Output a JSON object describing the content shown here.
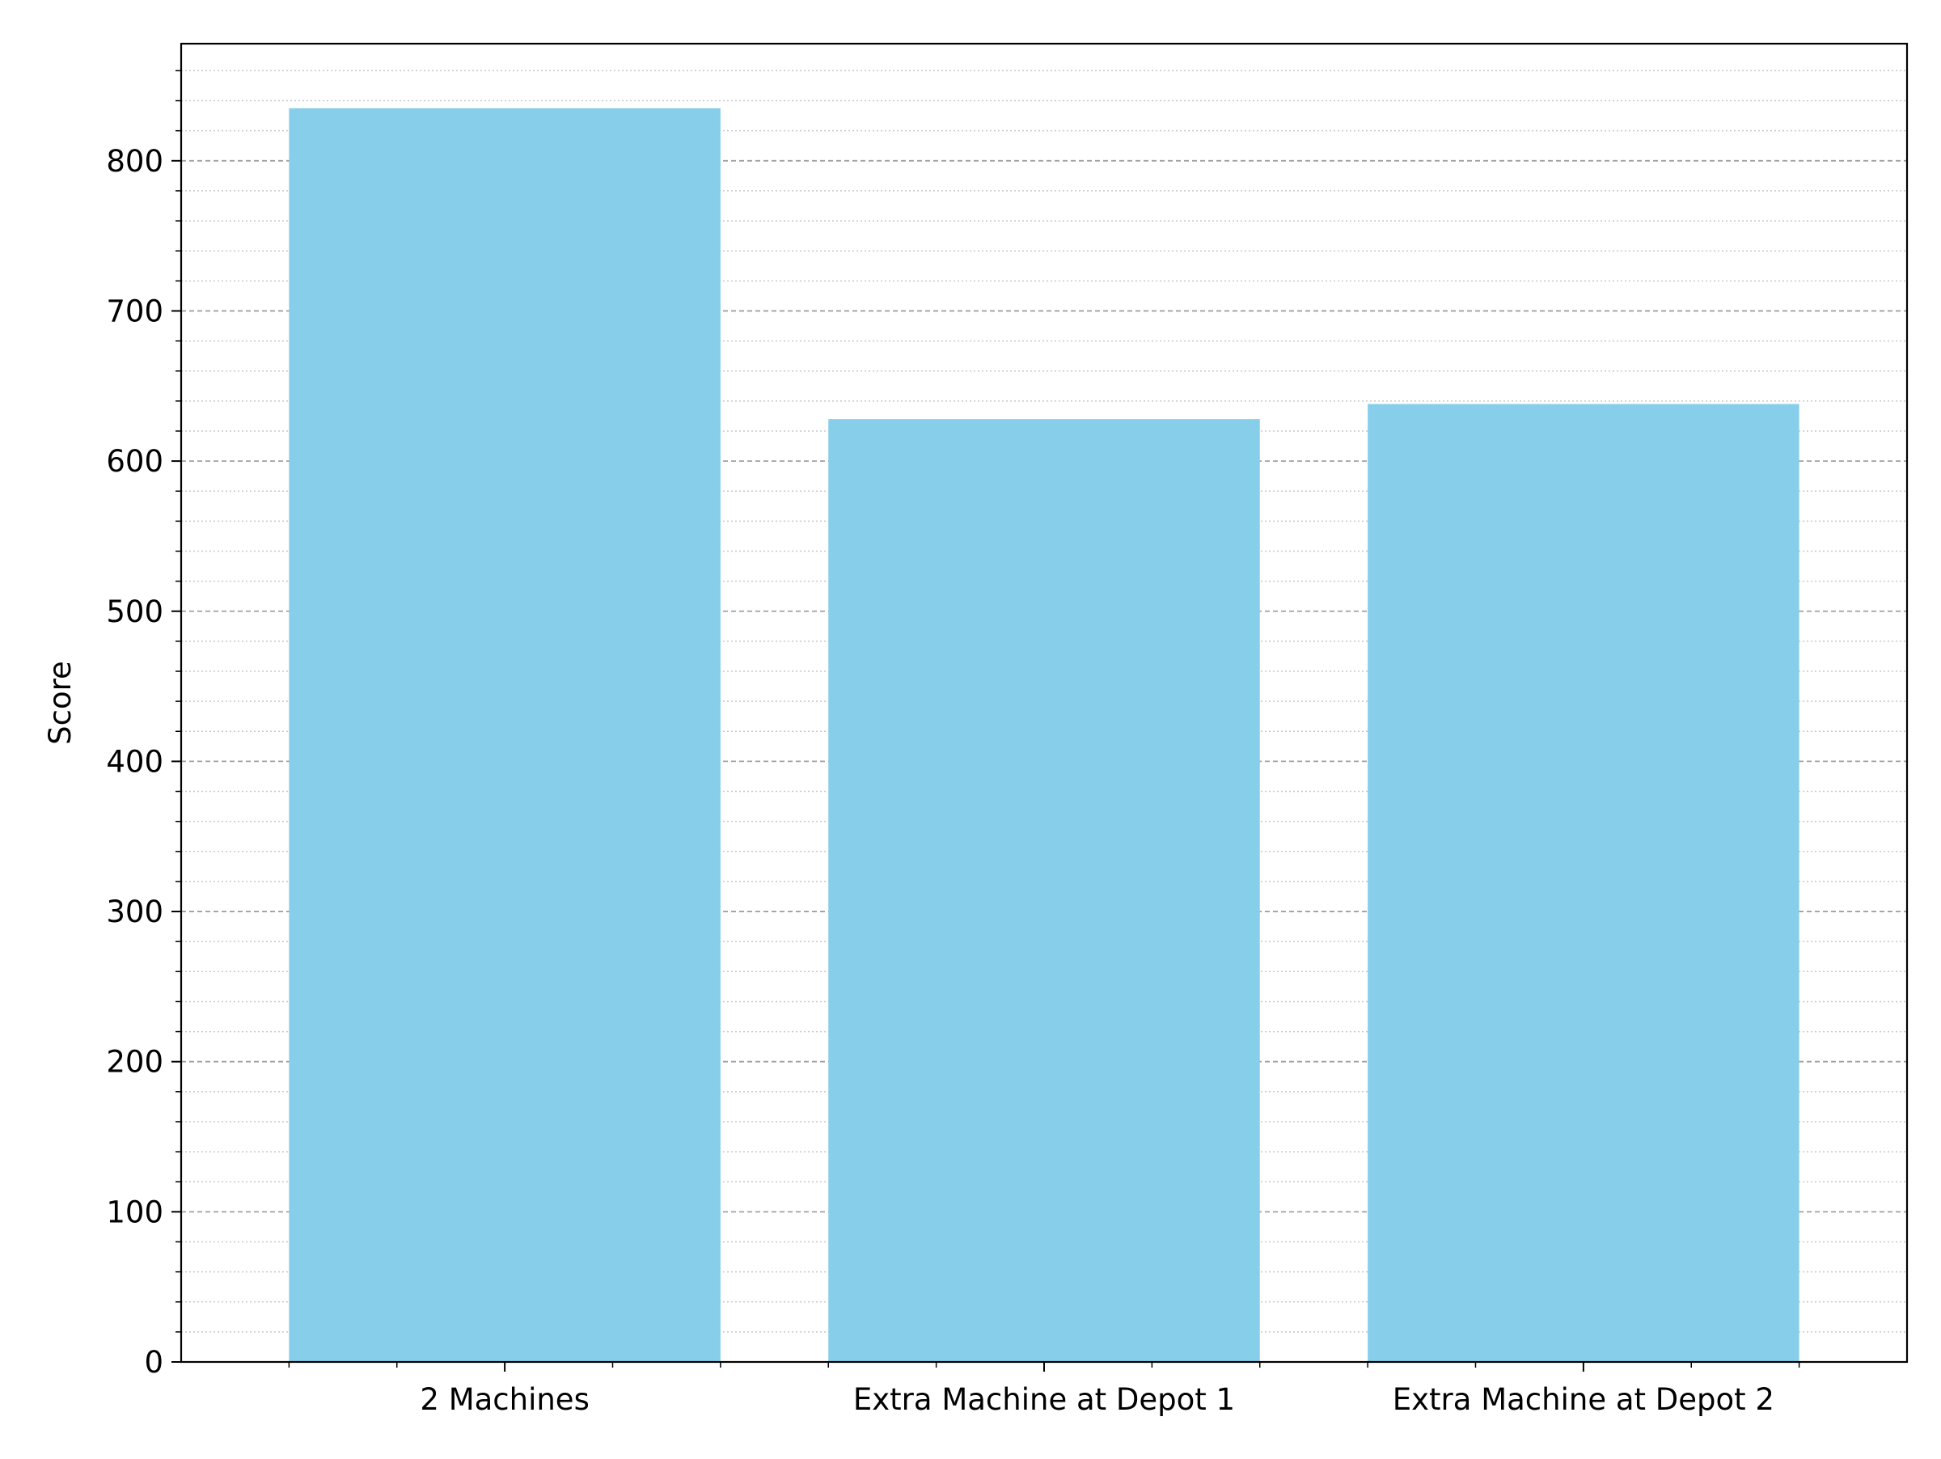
{
  "chart_data": {
    "type": "bar",
    "title": "",
    "xlabel": "",
    "ylabel": "Score",
    "categories": [
      "2 Machines",
      "Extra Machine at Depot 1",
      "Extra Machine at Depot 2"
    ],
    "values": [
      835,
      628,
      638
    ],
    "ylim": [
      0,
      878
    ],
    "yticks": [
      0,
      100,
      200,
      300,
      400,
      500,
      600,
      700,
      800
    ],
    "y_minor_step": 20,
    "x_minor_ticks": [
      -0.4,
      -0.2,
      0.2,
      0.4,
      0.6,
      0.8,
      1.2,
      1.4,
      1.6,
      1.8,
      2.2,
      2.4
    ],
    "grid": {
      "major": "dashed",
      "minor": "dotted"
    },
    "legend": "none",
    "colors": {
      "bar": "#87CEEB",
      "major_grid": "#a0a0a0",
      "minor_grid": "#c8c8c8",
      "axis": "#000000"
    }
  }
}
